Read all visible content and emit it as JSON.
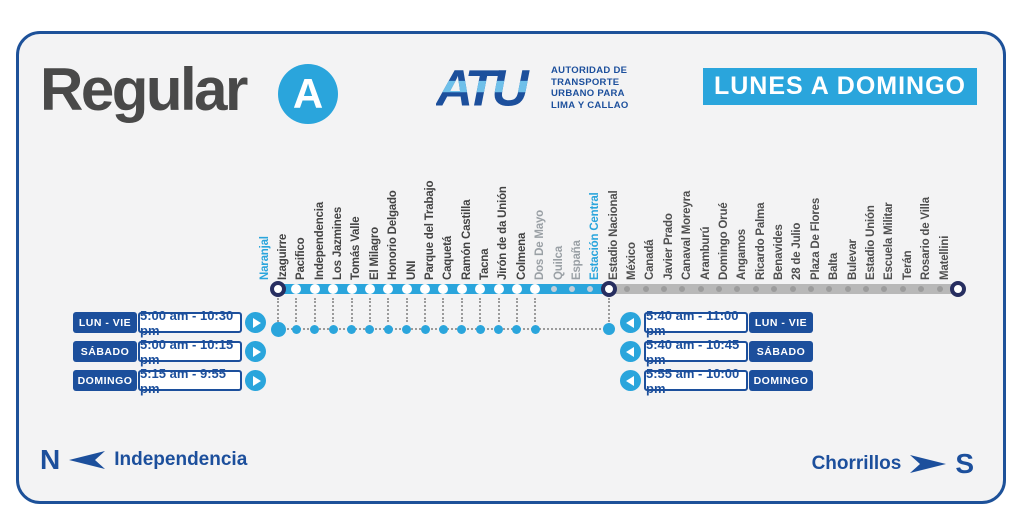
{
  "route": {
    "type_label": "Regular",
    "letter": "A"
  },
  "agency": {
    "abbr": "ATU",
    "name_lines": [
      "AUTORIDAD DE",
      "TRANSPORTE",
      "URBANO PARA",
      "LIMA Y CALLAO"
    ]
  },
  "banner": "LUNES A DOMINGO",
  "colors": {
    "cyan": "#2aa5dc",
    "navy": "#1c4f9c",
    "terminal_ring": "#272e60",
    "gray_line": "#b8b8b8",
    "card_border": "#1d5199"
  },
  "stations": [
    {
      "name": "Naranjal",
      "state": "terminal"
    },
    {
      "name": "Izaguirre",
      "state": "served"
    },
    {
      "name": "Pacifico",
      "state": "served"
    },
    {
      "name": "Independencia",
      "state": "served"
    },
    {
      "name": "Los Jazmines",
      "state": "served"
    },
    {
      "name": "Tomás Valle",
      "state": "served"
    },
    {
      "name": "El Milagro",
      "state": "served"
    },
    {
      "name": "Honorio Delgado",
      "state": "served"
    },
    {
      "name": "UNI",
      "state": "served"
    },
    {
      "name": "Parque del Trabajo",
      "state": "served"
    },
    {
      "name": "Caquetá",
      "state": "served"
    },
    {
      "name": "Ramón Castilla",
      "state": "served"
    },
    {
      "name": "Tacna",
      "state": "served"
    },
    {
      "name": "Jirón de da Unión",
      "state": "served"
    },
    {
      "name": "Colmena",
      "state": "served"
    },
    {
      "name": "Dos De Mayo",
      "state": "skipped"
    },
    {
      "name": "Quilca",
      "state": "skipped"
    },
    {
      "name": "España",
      "state": "skipped"
    },
    {
      "name": "Estación Central",
      "state": "terminal"
    },
    {
      "name": "Estadio Nacional",
      "state": "inactive"
    },
    {
      "name": "México",
      "state": "inactive"
    },
    {
      "name": "Canadá",
      "state": "inactive"
    },
    {
      "name": "Javier Prado",
      "state": "inactive"
    },
    {
      "name": "Canaval Moreyra",
      "state": "inactive"
    },
    {
      "name": "Aramburú",
      "state": "inactive"
    },
    {
      "name": "Domingo Orué",
      "state": "inactive"
    },
    {
      "name": "Angamos",
      "state": "inactive"
    },
    {
      "name": "Ricardo Palma",
      "state": "inactive"
    },
    {
      "name": "Benavides",
      "state": "inactive"
    },
    {
      "name": "28 de Julio",
      "state": "inactive"
    },
    {
      "name": "Plaza De Flores",
      "state": "inactive"
    },
    {
      "name": "Balta",
      "state": "inactive"
    },
    {
      "name": "Bulevar",
      "state": "inactive"
    },
    {
      "name": "Estadio Unión",
      "state": "inactive"
    },
    {
      "name": "Escuela Militar",
      "state": "inactive"
    },
    {
      "name": "Terán",
      "state": "inactive"
    },
    {
      "name": "Rosario de Villa",
      "state": "inactive"
    },
    {
      "name": "Matellini",
      "state": "terminal_end"
    }
  ],
  "schedules": {
    "left": [
      {
        "days": "LUN - VIE",
        "hours": "5:00 am - 10:30 pm"
      },
      {
        "days": "SÁBADO",
        "hours": "5:00 am - 10:15 pm"
      },
      {
        "days": "DOMINGO",
        "hours": "5:15 am - 9:55 pm"
      }
    ],
    "right": [
      {
        "days": "LUN - VIE",
        "hours": "5:40 am - 11:00 pm"
      },
      {
        "days": "SÁBADO",
        "hours": "5:40 am - 10:45 pm"
      },
      {
        "days": "DOMINGO",
        "hours": "5:55 am - 10:00 pm"
      }
    ]
  },
  "directions": {
    "north": {
      "compass": "N",
      "destination": "Independencia"
    },
    "south": {
      "compass": "S",
      "destination": "Chorrillos"
    }
  }
}
